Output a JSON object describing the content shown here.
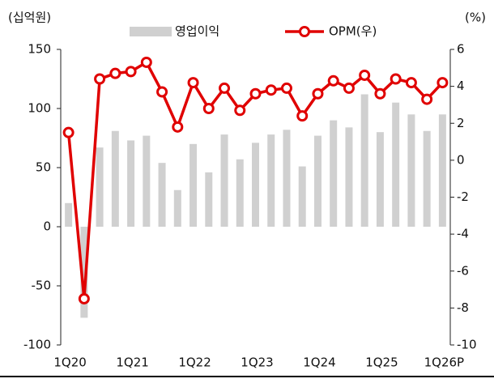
{
  "chart_data": {
    "type": "bar",
    "y_label": "(십억원)",
    "y2_label": "(%)",
    "categories": [
      "1Q20",
      null,
      null,
      null,
      "1Q21",
      null,
      null,
      null,
      "1Q22",
      null,
      null,
      null,
      "1Q23",
      null,
      null,
      null,
      "1Q24",
      null,
      null,
      null,
      "1Q25",
      null,
      null,
      null,
      "1Q26P"
    ],
    "series": [
      {
        "name": "영업이익",
        "type": "bar",
        "color": "#d0d0d0",
        "values": [
          20,
          -77,
          67,
          81,
          73,
          77,
          54,
          31,
          70,
          46,
          78,
          57,
          71,
          78,
          82,
          51,
          77,
          90,
          84,
          112,
          80,
          105,
          95,
          81,
          95
        ]
      },
      {
        "name": "OPM(우)",
        "type": "line",
        "axis": "y2",
        "color": "#e00000",
        "values": [
          1.5,
          -7.5,
          4.4,
          4.7,
          4.8,
          5.3,
          3.7,
          1.8,
          4.2,
          2.8,
          3.9,
          2.7,
          3.6,
          3.8,
          3.9,
          2.4,
          3.6,
          4.3,
          3.9,
          4.6,
          3.6,
          4.4,
          4.2,
          3.3,
          4.2
        ]
      }
    ],
    "ylim": [
      -100,
      150
    ],
    "yticks": [
      -100,
      -50,
      0,
      50,
      100,
      150
    ],
    "y2lim": [
      -10,
      6
    ],
    "y2ticks": [
      -10,
      -8,
      -6,
      -4,
      -2,
      0,
      2,
      4,
      6
    ],
    "grid": false
  }
}
